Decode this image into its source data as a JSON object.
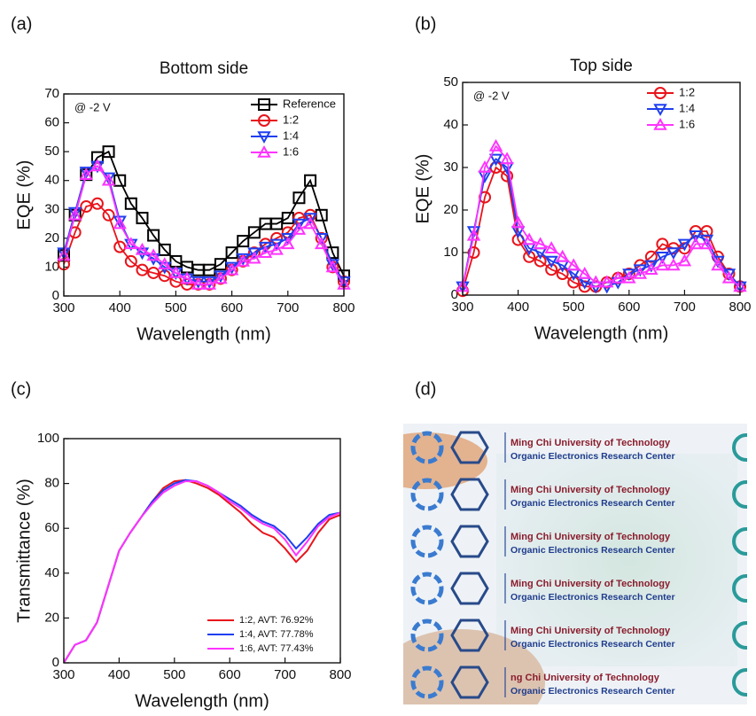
{
  "chart_data": [
    {
      "type": "line",
      "panel_label": "(a)",
      "title": "Bottom side",
      "xlabel": "Wavelength (nm)",
      "ylabel": "EQE (%)",
      "annotation": "@ -2 V",
      "x": [
        300,
        320,
        340,
        360,
        380,
        400,
        420,
        440,
        460,
        480,
        500,
        520,
        540,
        560,
        580,
        600,
        620,
        640,
        660,
        680,
        700,
        720,
        740,
        760,
        780,
        800
      ],
      "series": [
        {
          "name": "Reference",
          "color": "#000000",
          "marker": "square",
          "values": [
            14,
            28,
            42,
            48,
            50,
            40,
            32,
            27,
            21,
            16,
            12,
            10,
            9,
            9,
            11,
            15,
            19,
            22,
            25,
            25,
            27,
            34,
            40,
            28,
            15,
            7
          ]
        },
        {
          "name": "1:2",
          "color": "#e8141b",
          "marker": "circle",
          "values": [
            11,
            22,
            31,
            32,
            28,
            17,
            12,
            9,
            8,
            7,
            5,
            4,
            4,
            4,
            6,
            9,
            12,
            15,
            18,
            20,
            22,
            27,
            28,
            20,
            10,
            5
          ]
        },
        {
          "name": "1:4",
          "color": "#1f3ff0",
          "marker": "triangle-down",
          "values": [
            15,
            29,
            43,
            45,
            41,
            26,
            18,
            15,
            13,
            10,
            8,
            6,
            5,
            5,
            7,
            10,
            13,
            15,
            17,
            18,
            20,
            25,
            27,
            20,
            11,
            5
          ]
        },
        {
          "name": "1:6",
          "color": "#ff33ff",
          "marker": "triangle-up",
          "values": [
            14,
            28,
            42,
            45,
            40,
            25,
            18,
            16,
            14,
            11,
            8,
            6,
            4,
            4,
            6,
            9,
            12,
            13,
            15,
            16,
            18,
            23,
            25,
            18,
            10,
            4
          ]
        }
      ],
      "xlim": [
        300,
        800
      ],
      "ylim": [
        0,
        70
      ],
      "xticks": [
        300,
        400,
        500,
        600,
        700,
        800
      ],
      "yticks": [
        0,
        10,
        20,
        30,
        40,
        50,
        60,
        70
      ],
      "legend": "upper-right"
    },
    {
      "type": "line",
      "panel_label": "(b)",
      "title": "Top side",
      "xlabel": "Wavelength (nm)",
      "ylabel": "EQE (%)",
      "annotation": "@ -2 V",
      "x": [
        300,
        320,
        340,
        360,
        380,
        400,
        420,
        440,
        460,
        480,
        500,
        520,
        540,
        560,
        580,
        600,
        620,
        640,
        660,
        680,
        700,
        720,
        740,
        760,
        780,
        800
      ],
      "series": [
        {
          "name": "1:2",
          "color": "#e8141b",
          "marker": "circle",
          "values": [
            1,
            10,
            23,
            30,
            28,
            13,
            9,
            8,
            6,
            5,
            3,
            2,
            2,
            3,
            4,
            5,
            7,
            9,
            12,
            11,
            11,
            15,
            15,
            9,
            5,
            2
          ]
        },
        {
          "name": "1:4",
          "color": "#1f3ff0",
          "marker": "triangle-down",
          "values": [
            2,
            15,
            28,
            32,
            30,
            15,
            11,
            10,
            8,
            7,
            5,
            3,
            2,
            2,
            3,
            5,
            6,
            7,
            9,
            10,
            12,
            14,
            13,
            8,
            5,
            2
          ]
        },
        {
          "name": "1:6",
          "color": "#ff33ff",
          "marker": "triangle-up",
          "values": [
            2,
            14,
            30,
            35,
            32,
            17,
            13,
            12,
            11,
            9,
            7,
            5,
            3,
            3,
            4,
            4,
            5,
            6,
            7,
            7,
            8,
            12,
            12,
            7,
            4,
            2
          ]
        }
      ],
      "xlim": [
        300,
        800
      ],
      "ylim": [
        0,
        50
      ],
      "xticks": [
        300,
        400,
        500,
        600,
        700,
        800
      ],
      "yticks": [
        0,
        10,
        20,
        30,
        40,
        50
      ],
      "legend": "upper-right"
    },
    {
      "type": "line",
      "panel_label": "(c)",
      "xlabel": "Wavelength (nm)",
      "ylabel": "Transmittance (%)",
      "x": [
        300,
        320,
        340,
        360,
        380,
        400,
        420,
        440,
        460,
        480,
        500,
        520,
        540,
        560,
        580,
        600,
        620,
        640,
        660,
        680,
        700,
        720,
        740,
        760,
        780,
        800
      ],
      "series": [
        {
          "name": "1:2, AVT: 76.92%",
          "color": "#e8141b",
          "values": [
            0,
            8,
            10,
            18,
            34,
            50,
            58,
            65,
            72,
            78,
            81,
            81.5,
            80,
            78,
            75,
            71,
            67,
            62,
            58,
            56,
            51,
            45,
            50,
            58,
            64,
            66
          ]
        },
        {
          "name": "1:4, AVT: 77.78%",
          "color": "#1f3ff0",
          "values": [
            0,
            8,
            10,
            18,
            34,
            50,
            58,
            65,
            72,
            77,
            80,
            81.5,
            81,
            79,
            76,
            73,
            70,
            66,
            63,
            61,
            57,
            51,
            56,
            62,
            66,
            67
          ]
        },
        {
          "name": "1:6, AVT: 77.43%",
          "color": "#ff33ff",
          "values": [
            0,
            8,
            10,
            18,
            34,
            50,
            58,
            65,
            71,
            76,
            79,
            81,
            81,
            79,
            76,
            72,
            69,
            65,
            62,
            60,
            55,
            48,
            54,
            61,
            65,
            67
          ]
        }
      ],
      "xlim": [
        300,
        800
      ],
      "ylim": [
        0,
        100
      ],
      "xticks": [
        300,
        400,
        500,
        600,
        700,
        800
      ],
      "yticks": [
        0,
        20,
        40,
        60,
        80,
        100
      ],
      "legend": "lower-right"
    }
  ],
  "photo": {
    "panel_label": "(d)",
    "rows": [
      [
        "Ming Chi University of Technology",
        "Organic Electronics Research Center"
      ],
      [
        "Ming Chi University of Technology",
        "Organic Electronics Research Center"
      ],
      [
        "Ming Chi University of Technology",
        "Organic Electronics Research Center"
      ],
      [
        "Ming Chi University of Technology",
        "Organic Electronics Research Center"
      ],
      [
        "Ming Chi University of Technology",
        "Organic Electronics Research Center"
      ],
      [
        "ng Chi University of Technology",
        "Organic Electronics Research Center"
      ]
    ]
  }
}
